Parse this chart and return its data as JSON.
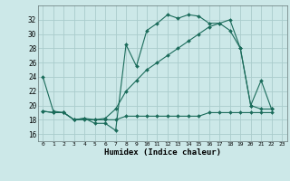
{
  "background_color": "#cce8e8",
  "grid_color": "#aacccc",
  "line_color": "#1a6b5a",
  "xlabel": "Humidex (Indice chaleur)",
  "ylim": [
    15,
    34
  ],
  "xlim": [
    -0.5,
    23.5
  ],
  "yticks": [
    16,
    18,
    20,
    22,
    24,
    26,
    28,
    30,
    32
  ],
  "xticks": [
    0,
    1,
    2,
    3,
    4,
    5,
    6,
    7,
    8,
    9,
    10,
    11,
    12,
    13,
    14,
    15,
    16,
    17,
    18,
    19,
    20,
    21,
    22,
    23
  ],
  "line1_x": [
    0,
    1,
    2,
    3,
    4,
    5,
    6,
    7,
    8,
    9,
    10,
    11,
    12,
    13,
    14,
    15,
    16,
    17,
    18,
    19,
    20,
    21,
    22
  ],
  "line1_y": [
    24,
    19.2,
    19,
    18,
    18.2,
    17.5,
    17.5,
    16.5,
    28.5,
    25.5,
    30.5,
    31.5,
    32.7,
    32.2,
    32.7,
    32.5,
    31.5,
    31.5,
    30.5,
    28,
    20,
    23.5,
    19.5
  ],
  "line2_x": [
    0,
    1,
    2,
    3,
    4,
    5,
    6,
    7,
    8,
    9,
    10,
    11,
    12,
    13,
    14,
    15,
    16,
    17,
    18,
    19,
    20,
    21,
    22
  ],
  "line2_y": [
    19.2,
    19,
    19,
    18,
    18.2,
    18,
    18.2,
    19.5,
    22,
    23.5,
    25,
    26,
    27,
    28,
    29,
    30,
    31,
    31.5,
    32,
    28,
    20,
    19.5,
    19.5
  ],
  "line3_x": [
    0,
    1,
    2,
    3,
    4,
    5,
    6,
    7,
    8,
    9,
    10,
    11,
    12,
    13,
    14,
    15,
    16,
    17,
    18,
    19,
    20,
    21,
    22
  ],
  "line3_y": [
    19.2,
    19,
    19,
    18,
    18,
    18,
    18,
    18,
    18.5,
    18.5,
    18.5,
    18.5,
    18.5,
    18.5,
    18.5,
    18.5,
    19,
    19,
    19,
    19,
    19,
    19,
    19
  ]
}
